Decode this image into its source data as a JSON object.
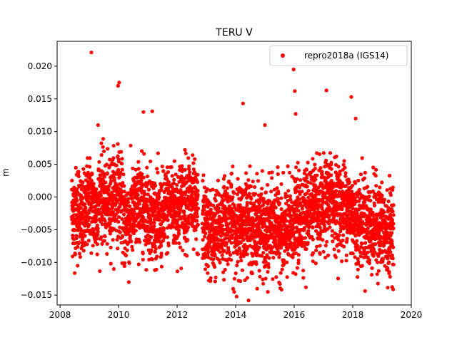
{
  "chart_data": {
    "type": "scatter",
    "title": "TERU V",
    "xlabel": "",
    "ylabel": "m",
    "xlim": [
      2007.9,
      2020.0
    ],
    "ylim": [
      -0.0165,
      0.0238
    ],
    "xticks": [
      2008,
      2010,
      2012,
      2014,
      2016,
      2018,
      2020
    ],
    "xtick_labels": [
      "2008",
      "2010",
      "2012",
      "2014",
      "2016",
      "2018",
      "2020"
    ],
    "yticks": [
      -0.015,
      -0.01,
      -0.005,
      0.0,
      0.005,
      0.01,
      0.015,
      0.02
    ],
    "ytick_labels": [
      "−0.015",
      "−0.010",
      "−0.005",
      "0.000",
      "0.005",
      "0.010",
      "0.015",
      "0.020"
    ],
    "legend": {
      "placement": "top-right",
      "entries": [
        "repro2018a (IGS14)"
      ]
    },
    "grid": false,
    "series": [
      {
        "name": "repro2018a (IGS14)",
        "color": "#ff0000",
        "marker": "circle",
        "x": [
          2008.4,
          2008.5,
          2008.6,
          2008.8,
          2009.0,
          2009.2,
          2009.4,
          2009.6,
          2009.8,
          2010.0,
          2010.1,
          2010.2,
          2010.4,
          2010.6,
          2010.8,
          2011.0,
          2011.2,
          2011.4,
          2011.6,
          2011.8,
          2012.0,
          2012.2,
          2012.4,
          2012.6,
          2012.9,
          2013.0,
          2013.2,
          2013.4,
          2013.6,
          2013.8,
          2014.0,
          2014.2,
          2014.4,
          2014.6,
          2014.8,
          2015.0,
          2015.2,
          2015.4,
          2015.6,
          2015.8,
          2016.0,
          2016.2,
          2016.4,
          2016.6,
          2016.8,
          2017.0,
          2017.2,
          2017.4,
          2017.6,
          2017.8,
          2018.0,
          2018.2,
          2018.4,
          2018.6,
          2018.8,
          2019.0,
          2019.2,
          2019.4
        ],
        "y": [
          -0.002,
          -0.003,
          -0.001,
          -0.004,
          0.0,
          -0.003,
          0.001,
          -0.002,
          0.0,
          0.001,
          -0.001,
          -0.004,
          -0.003,
          -0.002,
          -0.001,
          -0.002,
          -0.003,
          -0.004,
          -0.002,
          -0.001,
          -0.002,
          -0.001,
          0.0,
          -0.002,
          -0.004,
          -0.005,
          -0.006,
          -0.005,
          -0.004,
          -0.003,
          -0.005,
          -0.004,
          -0.003,
          -0.005,
          -0.004,
          -0.006,
          -0.005,
          -0.004,
          -0.006,
          -0.005,
          -0.004,
          -0.003,
          -0.002,
          -0.001,
          -0.003,
          -0.002,
          0.0,
          -0.001,
          -0.002,
          -0.001,
          -0.003,
          -0.004,
          -0.003,
          -0.005,
          -0.004,
          -0.005,
          -0.006,
          -0.004
        ],
        "outliers_x": [
          2009.07,
          2009.98,
          2010.02,
          2010.85,
          2011.15,
          2014.25,
          2015.0,
          2015.98,
          2016.02,
          2016.05,
          2017.1,
          2017.95,
          2018.1,
          2008.6,
          2010.35,
          2013.95,
          2014.1,
          2015.1,
          2016.4,
          2009.3
        ],
        "outliers_y": [
          0.0221,
          0.017,
          0.0175,
          0.013,
          0.0131,
          0.0143,
          0.011,
          0.0195,
          0.0162,
          0.0127,
          0.0163,
          0.0153,
          0.012,
          -0.0105,
          -0.013,
          -0.0145,
          -0.0128,
          -0.0145,
          -0.0138,
          0.011
        ]
      }
    ]
  }
}
